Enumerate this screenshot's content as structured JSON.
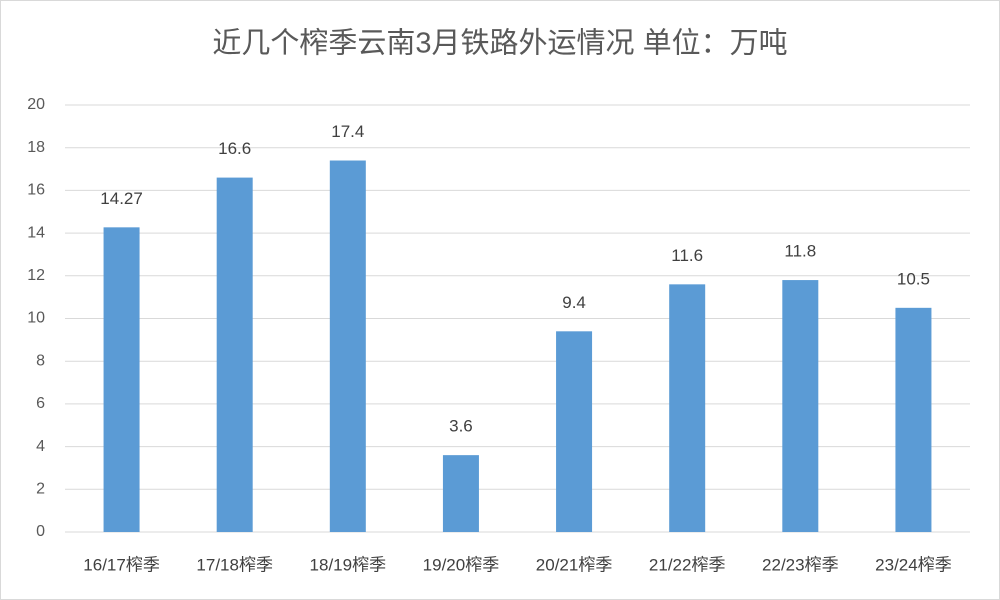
{
  "chart_data": {
    "type": "bar",
    "title": "近几个榨季云南3月铁路外运情况 单位：万吨",
    "categories": [
      "16/17榨季",
      "17/18榨季",
      "18/19榨季",
      "19/20榨季",
      "20/21榨季",
      "21/22榨季",
      "22/23榨季",
      "23/24榨季"
    ],
    "values": [
      14.27,
      16.6,
      17.4,
      3.6,
      9.4,
      11.6,
      11.8,
      10.5
    ],
    "color": "#5b9bd5",
    "ylim": [
      0,
      20
    ],
    "yticks": [
      0,
      2,
      4,
      6,
      8,
      10,
      12,
      14,
      16,
      18,
      20
    ],
    "grid": true
  }
}
